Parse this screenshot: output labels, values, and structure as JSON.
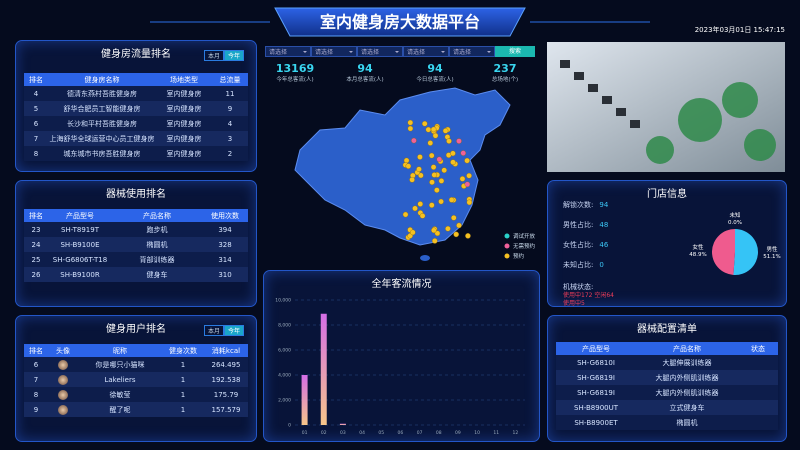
{
  "header": {
    "title": "室内健身房大数据平台",
    "datetime": "2023年03月01日 15:47:15"
  },
  "gym_ranking": {
    "title": "健身房流量排名",
    "tabs": [
      "本月",
      "今年"
    ],
    "header": [
      "排名",
      "健身房名称",
      "场地类型",
      "总流量"
    ],
    "rows": [
      [
        4,
        "德清东燕村吾胜健身房",
        "室内健身房",
        11
      ],
      [
        5,
        "舒华合肥员工智能健身房",
        "室内健身房",
        9
      ],
      [
        6,
        "长沙和平村吾胜健身房",
        "室内健身房",
        4
      ],
      [
        7,
        "上海舒华全球运营中心员工健身房",
        "室内健身房",
        3
      ],
      [
        8,
        "城东城市书房吾胜健身房",
        "室内健身房",
        2
      ]
    ]
  },
  "equipment_ranking": {
    "title": "器械使用排名",
    "header": [
      "排名",
      "产品型号",
      "产品名称",
      "使用次数"
    ],
    "rows": [
      [
        23,
        "SH-T8919T",
        "跑步机",
        394
      ],
      [
        24,
        "SH-B9100E",
        "椭圆机",
        328
      ],
      [
        25,
        "SH-G6806T-T18",
        "背部训练器",
        314
      ],
      [
        26,
        "SH-B9100R",
        "健身车",
        310
      ]
    ]
  },
  "user_ranking": {
    "title": "健身用户排名",
    "tabs": [
      "本月",
      "今年"
    ],
    "header": [
      "排名",
      "头像",
      "昵称",
      "健身次数",
      "消耗kcal"
    ],
    "rows": [
      [
        6,
        "你是哪只小猫咪",
        1,
        264.495
      ],
      [
        7,
        "Lakeliers",
        1,
        192.538
      ],
      [
        8,
        "徐敏莹",
        1,
        175.79
      ],
      [
        9,
        "醒了呢",
        1,
        157.579
      ]
    ]
  },
  "filters": {
    "selects": [
      "请选择",
      "请选择",
      "请选择",
      "请选择",
      "请选择"
    ],
    "button": "搜索"
  },
  "stats": [
    {
      "value": 13169,
      "label": "今年总客流(人)"
    },
    {
      "value": 94,
      "label": "本月总客流(人)"
    },
    {
      "value": 94,
      "label": "今日总客流(人)"
    },
    {
      "value": 237,
      "label": "总场地(个)"
    }
  ],
  "map_legend": [
    {
      "label": "调试开放",
      "color": "#2ad1c9"
    },
    {
      "label": "无需预约",
      "color": "#f0609a"
    },
    {
      "label": "预约",
      "color": "#f5c022"
    }
  ],
  "store_info": {
    "title": "门店信息",
    "items": [
      {
        "label": "解锁次数:",
        "value": 94
      },
      {
        "label": "男性占比:",
        "value": 48
      },
      {
        "label": "女性占比:",
        "value": 46
      },
      {
        "label": "未知占比:",
        "value": 0
      }
    ],
    "status_label": "机械状态:",
    "status": [
      "使用中172 空闲64",
      "使用中5"
    ]
  },
  "equipment_list": {
    "title": "器械配置清单",
    "header": [
      "产品型号",
      "产品名称",
      "状态"
    ],
    "rows": [
      [
        "SH-G6810I",
        "大腿伸展训练器"
      ],
      [
        "SH-G6819I",
        "大腿内外侧肌训练器"
      ],
      [
        "SH-G6819I",
        "大腿内外侧肌训练器"
      ],
      [
        "SH-B8900UT",
        "立式健身车"
      ],
      [
        "SH-B8900ET",
        "椭圆机"
      ]
    ]
  },
  "chart_data": [
    {
      "type": "bar",
      "title": "全年客流情况",
      "categories": [
        "01",
        "02",
        "03",
        "04",
        "05",
        "06",
        "07",
        "08",
        "09",
        "10",
        "11",
        "12"
      ],
      "values": [
        4000,
        8900,
        100,
        0,
        0,
        0,
        0,
        0,
        0,
        0,
        0,
        0
      ],
      "colors": [
        "#d46ee6",
        "#f6c58a"
      ],
      "ylim": [
        0,
        10000
      ],
      "yticks": [
        0,
        {
          "value": 2000,
          "label": "2,000"
        },
        {
          "value": 4000,
          "label": "4,000"
        },
        {
          "value": 6000,
          "label": "6,000"
        },
        {
          "value": 8000,
          "label": "8,000"
        },
        {
          "value": 10000,
          "label": "10,000"
        }
      ],
      "grid": true
    },
    {
      "type": "pie",
      "categories": [
        "男性",
        "女性",
        "未知"
      ],
      "values": [
        51.1,
        48.9,
        0.0
      ],
      "value_labels": [
        "51.1%",
        "48.9%",
        "0.0%"
      ],
      "colors": [
        "#35c4f6",
        "#ef5b8e",
        "#f5c022"
      ]
    }
  ]
}
